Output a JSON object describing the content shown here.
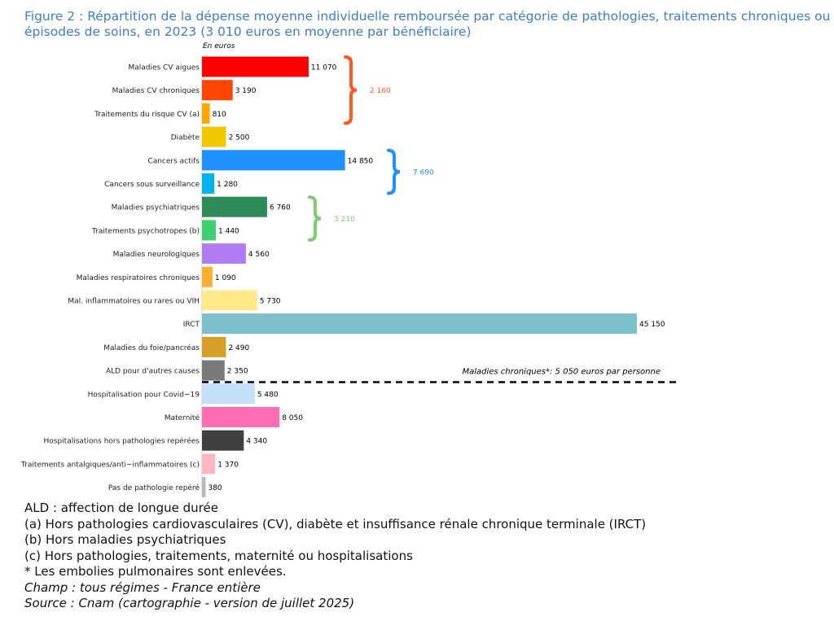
{
  "figure": {
    "title_line1": "Figure 2 : Répartition de la dépense moyenne individuelle remboursée par catégorie de pathologies, traitements chroniques ou",
    "title_line2": "épisodes de soins, en 2023 (3 010 euros en moyenne par bénéficiaire)"
  },
  "chart_data": {
    "type": "bar",
    "orientation": "horizontal",
    "unit_label": "En euros",
    "categories": [
      "Maladies CV aigues",
      "Maladies CV chroniques",
      "Traitements du risque CV (a)",
      "Diabète",
      "Cancers actifs",
      "Cancers sous surveillance",
      "Maladies psychiatriques",
      "Traitements psychotropes (b)",
      "Maladies neurologiques",
      "Maladies respiratoires chroniques",
      "Mal. inflammatoires ou rares ou VIH",
      "IRCT",
      "Maladies du foie/pancréas",
      "ALD pour d'autres causes",
      "Hospitalisation pour Covid−19",
      "Maternité",
      "Hospitalisations hors pathologies repérées",
      "Traitements antalgiques/anti−inflammatoires (c)",
      "Pas de pathologie repéré"
    ],
    "values": [
      11070,
      3190,
      810,
      2500,
      14850,
      1280,
      6760,
      1440,
      4560,
      1090,
      5730,
      45150,
      2490,
      2350,
      5480,
      8050,
      4340,
      1370,
      380
    ],
    "value_labels": [
      "11 070",
      "3 190",
      "810",
      "2 500",
      "14 850",
      "1 280",
      "6 760",
      "1 440",
      "4 560",
      "1 090",
      "5 730",
      "45 150",
      "2 490",
      "2 350",
      "5 480",
      "8 050",
      "4 340",
      "1 370",
      "380"
    ],
    "colors": [
      "#ff0000",
      "#ff4500",
      "#ffa500",
      "#f0c800",
      "#1e90ff",
      "#00b2ee",
      "#2e8b57",
      "#3cd070",
      "#b07cf2",
      "#ffb02e",
      "#ffe98a",
      "#7cc0cc",
      "#d4a02a",
      "#7a7a7a",
      "#c4dff8",
      "#ff6eb4",
      "#404040",
      "#ffb6c1",
      "#b8b8b8"
    ],
    "xlim": [
      0,
      45150
    ],
    "groups": [
      {
        "start": 0,
        "end": 2,
        "label": "2 160",
        "color": "#ff5722"
      },
      {
        "start": 4,
        "end": 5,
        "label": "7 690",
        "color": "#1e90ff"
      },
      {
        "start": 6,
        "end": 7,
        "label": "3 210",
        "color": "#7ccf6e"
      }
    ],
    "separator_after_index": 13,
    "separator_label": "Maladies chroniques*: 5 050 euros par personne"
  },
  "notes": {
    "ald": "ALD : affection de longue durée",
    "a": "(a) Hors pathologies cardiovasculaires (CV), diabète et insuffisance rénale chronique terminale (IRCT)",
    "b": "(b) Hors maladies psychiatriques",
    "c": "(c) Hors pathologies, traitements, maternité ou hospitalisations",
    "star": "* Les embolies pulmonaires sont enlevées.",
    "champ": "Champ : tous régimes - France entière",
    "source": "Source : Cnam (cartographie - version de juillet 2025)"
  }
}
